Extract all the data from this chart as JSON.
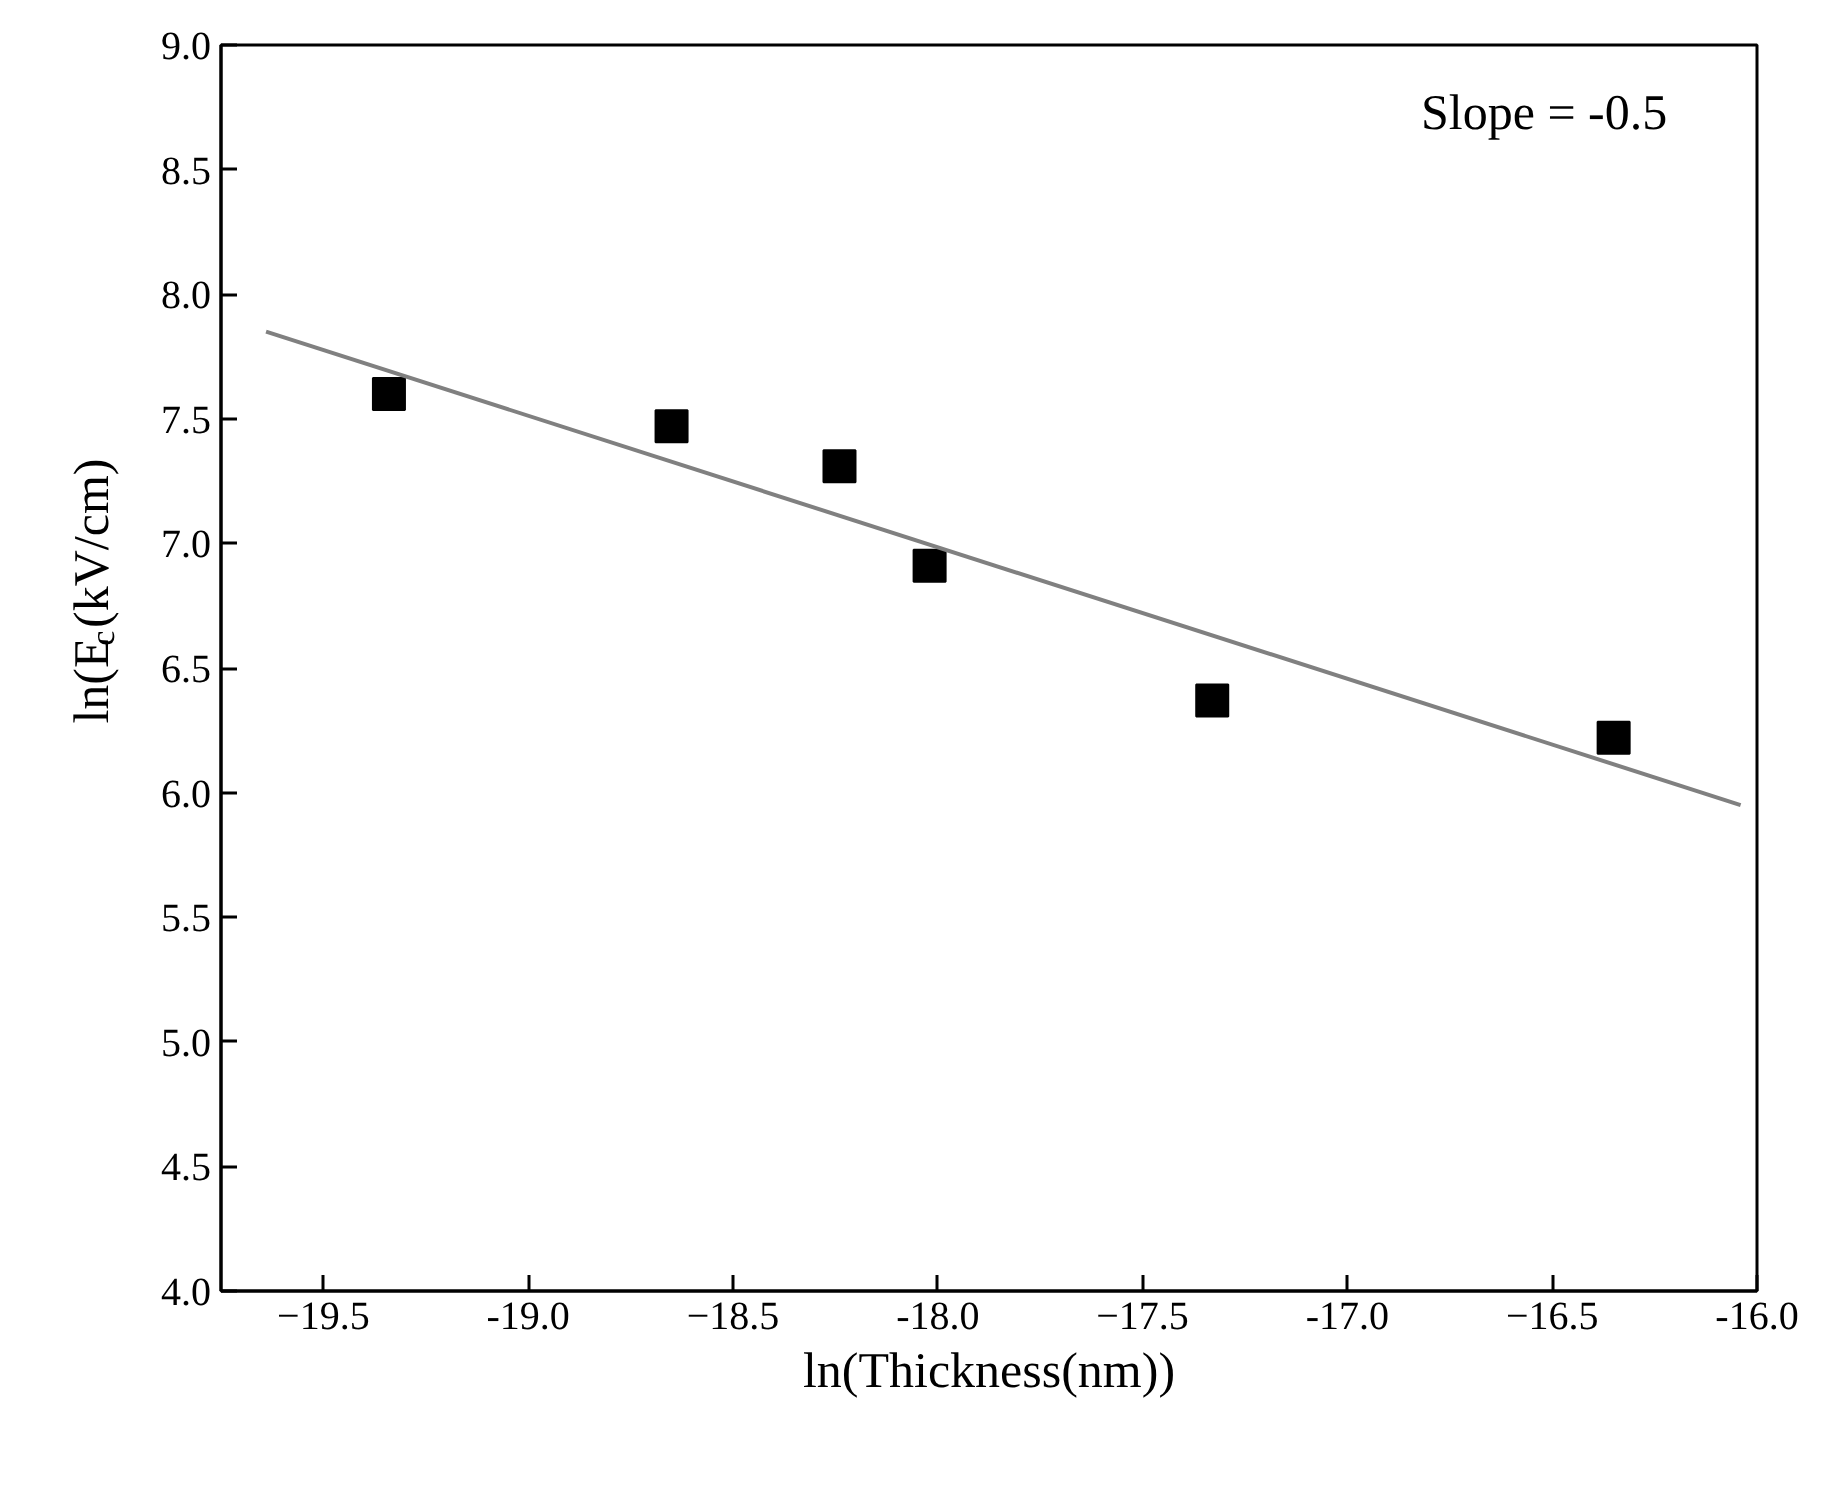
{
  "chart_data": {
    "type": "scatter",
    "xlabel": "ln(Thickness(nm))",
    "ylabel": "ln(E$_{c}$(kV/cm)",
    "xlim": [
      -19.75,
      -16.0
    ],
    "xticks": [
      -19.5,
      {
        "value": -19.0,
        "label": "-19.0"
      },
      -18.5,
      {
        "value": -18.0,
        "label": "-18.0"
      },
      -17.5,
      {
        "value": -17.0,
        "label": "-17.0"
      },
      -16.5,
      {
        "value": -16.0,
        "label": "-16.0"
      }
    ],
    "ylim": [
      4.0,
      9.0
    ],
    "yticks": [
      {
        "value": 4.0,
        "label": "4.0"
      },
      4.5,
      {
        "value": 5.0,
        "label": "5.0"
      },
      5.5,
      {
        "value": 6.0,
        "label": "6.0"
      },
      6.5,
      {
        "value": 7.0,
        "label": "7.0"
      },
      7.5,
      {
        "value": 8.0,
        "label": "8.0"
      },
      8.5,
      {
        "value": 9.0,
        "label": "9.0"
      }
    ],
    "grid": false,
    "series": [
      {
        "marker": "square",
        "color": "#000000",
        "x": [
          -19.34,
          -18.65,
          -18.24,
          -18.02,
          -17.33,
          -16.35
        ],
        "values": [
          7.6,
          7.47,
          7.31,
          6.91,
          6.37,
          6.22
        ]
      },
      {
        "type": "line",
        "color": "#808080",
        "x": [
          -19.64,
          -16.04
        ],
        "values": [
          7.85,
          5.95
        ]
      }
    ],
    "annotations": [
      "Slope = -0.5"
    ]
  }
}
